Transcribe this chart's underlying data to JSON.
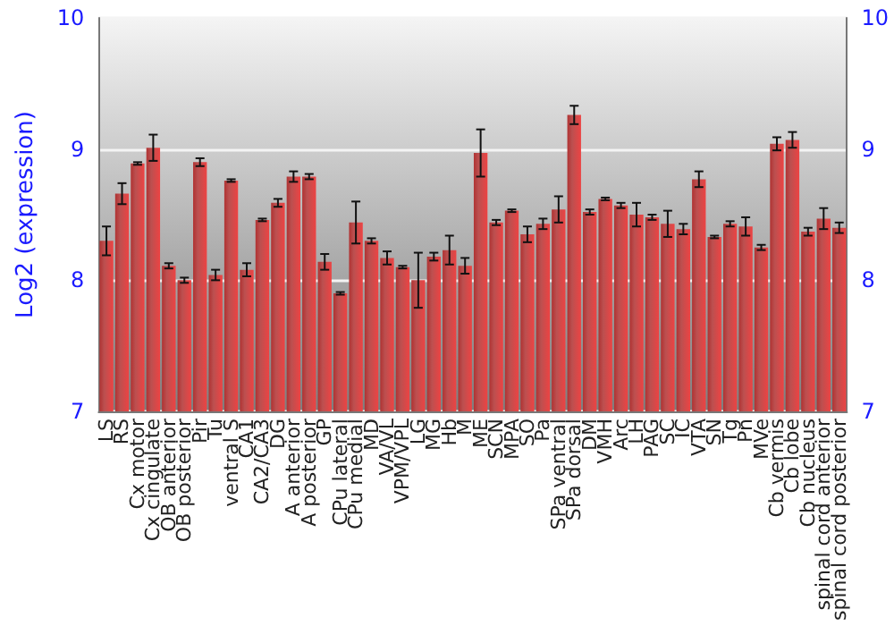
{
  "chart_data": {
    "type": "bar",
    "ylabel": "Log2 (expression)",
    "categories": [
      "LS",
      "RS",
      "Cx motor",
      "Cx cingulate",
      "OB anterior",
      "OB posterior",
      "Pir",
      "Tu",
      "ventral S",
      "CA1",
      "CA2/CA3",
      "DG",
      "A anterior",
      "A posterior",
      "GP",
      "CPu lateral",
      "CPu medial",
      "MD",
      "VA/VL",
      "VPM/VPL",
      "LG",
      "MG",
      "Hb",
      "M",
      "ME",
      "SCN",
      "MPA",
      "SO",
      "Pa",
      "SPa ventral",
      "SPa dorsal",
      "DM",
      "VMH",
      "Arc",
      "LH",
      "PAG",
      "SC",
      "IC",
      "VTA",
      "SN",
      "Tg",
      "Pn",
      "MVe",
      "Cb vermis",
      "Cb lobe",
      "Cb nucleus",
      "spinal cord anterior",
      "spinal cord posterior"
    ],
    "values": [
      8.3,
      8.66,
      8.89,
      9.01,
      8.11,
      8.0,
      8.9,
      8.04,
      8.76,
      8.08,
      8.46,
      8.59,
      8.79,
      8.79,
      8.14,
      7.9,
      8.44,
      8.3,
      8.17,
      8.1,
      8.0,
      8.18,
      8.23,
      8.11,
      8.97,
      8.44,
      8.53,
      8.35,
      8.43,
      8.54,
      9.26,
      8.52,
      8.62,
      8.57,
      8.5,
      8.48,
      8.43,
      8.39,
      8.77,
      8.33,
      8.43,
      8.41,
      8.25,
      9.04,
      9.07,
      8.37,
      8.47,
      8.4
    ],
    "errors": [
      0.11,
      0.08,
      0.01,
      0.1,
      0.02,
      0.02,
      0.03,
      0.04,
      0.01,
      0.05,
      0.01,
      0.03,
      0.04,
      0.02,
      0.06,
      0.01,
      0.16,
      0.02,
      0.05,
      0.01,
      0.21,
      0.03,
      0.11,
      0.06,
      0.18,
      0.02,
      0.01,
      0.06,
      0.04,
      0.1,
      0.07,
      0.02,
      0.01,
      0.02,
      0.09,
      0.02,
      0.1,
      0.04,
      0.06,
      0.01,
      0.02,
      0.07,
      0.02,
      0.05,
      0.06,
      0.03,
      0.08,
      0.04
    ],
    "color": "#b03232",
    "ylim": [
      7,
      10
    ],
    "yticks": [
      7,
      8,
      9,
      10
    ],
    "y2lim": [
      7,
      10
    ],
    "y2ticks": [
      7,
      8,
      9,
      10
    ],
    "grid": "y"
  }
}
